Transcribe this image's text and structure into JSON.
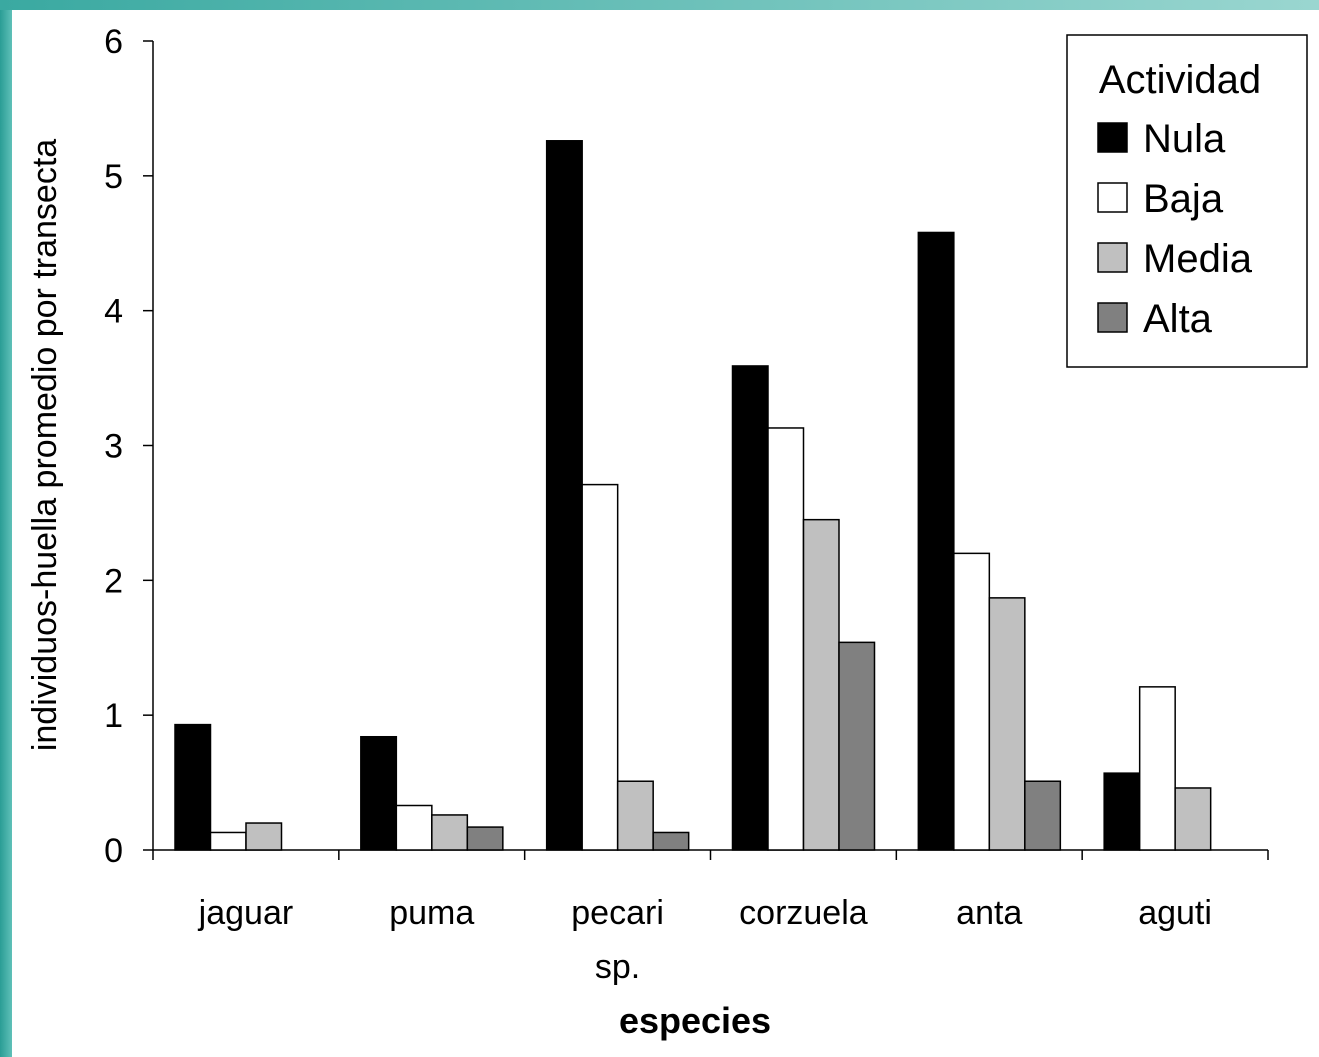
{
  "chart_data": {
    "type": "bar",
    "categories": [
      "jaguar",
      "puma",
      "pecari sp.",
      "corzuela",
      "anta",
      "aguti"
    ],
    "category_lines": [
      [
        "jaguar"
      ],
      [
        "puma"
      ],
      [
        "pecari",
        "sp."
      ],
      [
        "corzuela"
      ],
      [
        "anta"
      ],
      [
        "aguti"
      ]
    ],
    "series": [
      {
        "name": "Nula",
        "color": "#000000",
        "values": [
          0.93,
          0.84,
          5.26,
          3.59,
          4.58,
          0.57
        ]
      },
      {
        "name": "Baja",
        "color": "#ffffff",
        "values": [
          0.13,
          0.33,
          2.71,
          3.13,
          2.2,
          1.21
        ]
      },
      {
        "name": "Media",
        "color": "#c0c0c0",
        "values": [
          0.2,
          0.26,
          0.51,
          2.45,
          1.87,
          0.46
        ]
      },
      {
        "name": "Alta",
        "color": "#808080",
        "values": [
          0,
          0.17,
          0.13,
          1.54,
          0.51,
          0
        ]
      }
    ],
    "title": "",
    "xlabel": "especies",
    "ylabel": "individuos-huella promedio por transecta",
    "ylim": [
      0,
      6
    ],
    "yticks": [
      0,
      1,
      2,
      3,
      4,
      5,
      6
    ],
    "legend_title": "Actividad",
    "legend_position": "top-right",
    "grid": false
  }
}
